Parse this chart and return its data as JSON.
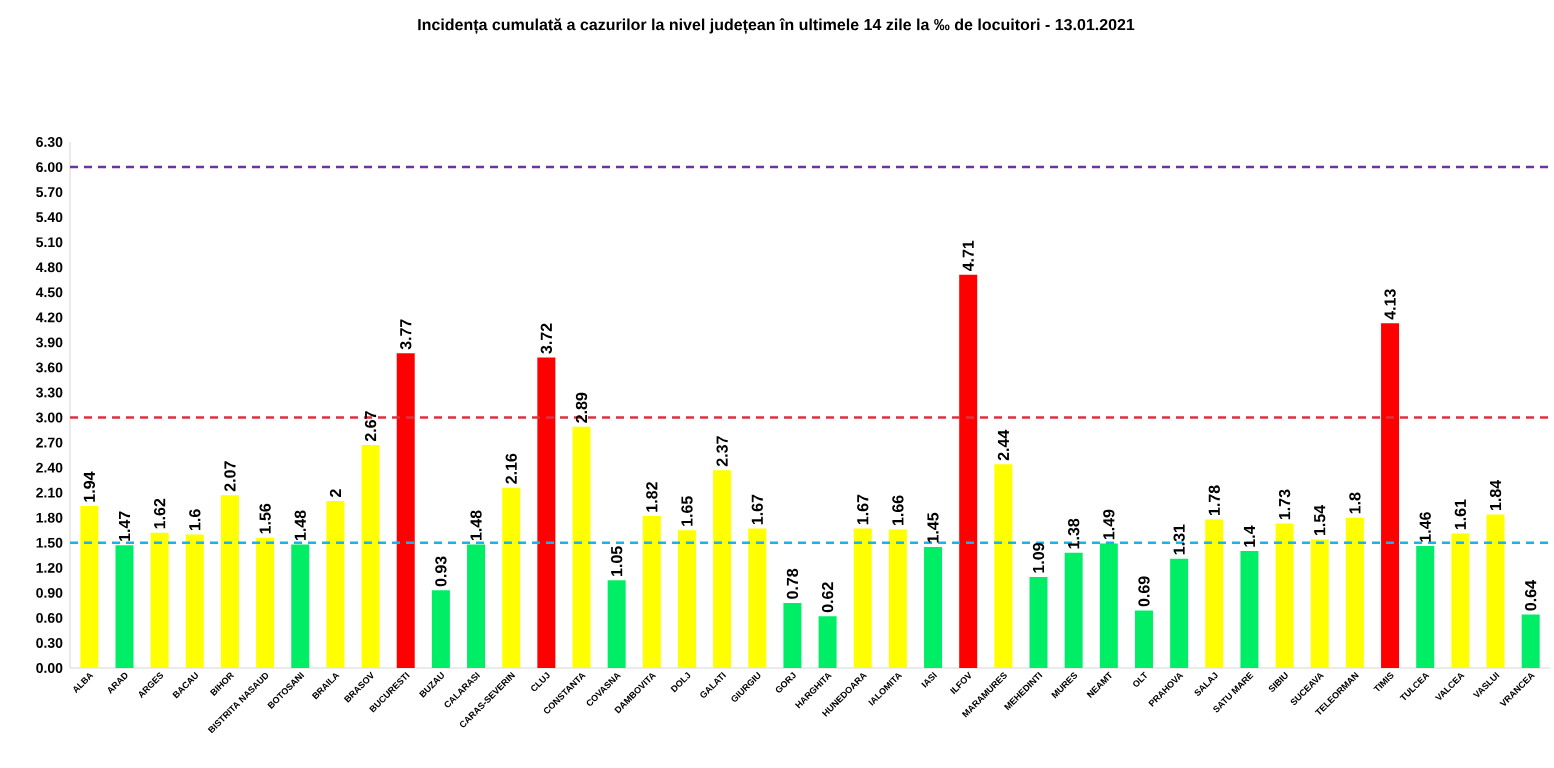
{
  "chart_data": {
    "type": "bar",
    "title": "Incidența cumulată a cazurilor la nivel județean în ultimele 14 zile la ‰ de locuitori - 13.01.2021",
    "categories": [
      "ALBA",
      "ARAD",
      "ARGES",
      "BACAU",
      "BIHOR",
      "BISTRITA NASAUD",
      "BOTOSANI",
      "BRAILA",
      "BRASOV",
      "BUCURESTI",
      "BUZAU",
      "CALARASI",
      "CARAS-SEVERIN",
      "CLUJ",
      "CONSTANTA",
      "COVASNA",
      "DAMBOVITA",
      "DOLJ",
      "GALATI",
      "GIURGIU",
      "GORJ",
      "HARGHITA",
      "HUNEDOARA",
      "IALOMITA",
      "IASI",
      "ILFOV",
      "MARAMURES",
      "MEHEDINTI",
      "MURES",
      "NEAMT",
      "OLT",
      "PRAHOVA",
      "SALAJ",
      "SATU MARE",
      "SIBIU",
      "SUCEAVA",
      "TELEORMAN",
      "TIMIS",
      "TULCEA",
      "VALCEA",
      "VASLUI",
      "VRANCEA"
    ],
    "values": [
      1.94,
      1.47,
      1.62,
      1.6,
      2.07,
      1.56,
      1.48,
      2,
      2.67,
      3.77,
      0.93,
      1.48,
      2.16,
      3.72,
      2.89,
      1.05,
      1.82,
      1.65,
      2.37,
      1.67,
      0.78,
      0.62,
      1.67,
      1.66,
      1.45,
      4.71,
      2.44,
      1.09,
      1.38,
      1.49,
      0.69,
      1.31,
      1.78,
      1.4,
      1.73,
      1.54,
      1.8,
      4.13,
      1.46,
      1.61,
      1.84,
      0.64
    ],
    "colors": [
      "#ffff00",
      "#00ee66",
      "#ffff00",
      "#ffff00",
      "#ffff00",
      "#ffff00",
      "#00ee66",
      "#ffff00",
      "#ffff00",
      "#ff0000",
      "#00ee66",
      "#00ee66",
      "#ffff00",
      "#ff0000",
      "#ffff00",
      "#00ee66",
      "#ffff00",
      "#ffff00",
      "#ffff00",
      "#ffff00",
      "#00ee66",
      "#00ee66",
      "#ffff00",
      "#ffff00",
      "#00ee66",
      "#ff0000",
      "#ffff00",
      "#00ee66",
      "#00ee66",
      "#00ee66",
      "#00ee66",
      "#00ee66",
      "#ffff00",
      "#00ee66",
      "#ffff00",
      "#ffff00",
      "#ffff00",
      "#ff0000",
      "#00ee66",
      "#ffff00",
      "#ffff00",
      "#00ee66"
    ],
    "ylim": [
      0,
      6.3
    ],
    "yticks": [
      {
        "value": 0,
        "label": "0.00"
      },
      {
        "value": 0.3,
        "label": "0.30"
      },
      {
        "value": 0.6,
        "label": "0.60"
      },
      {
        "value": 0.9,
        "label": "0.90"
      },
      {
        "value": 1.2,
        "label": "1.20"
      },
      {
        "value": 1.5,
        "label": "1.50"
      },
      {
        "value": 1.8,
        "label": "1.80"
      },
      {
        "value": 2.1,
        "label": "2.10"
      },
      {
        "value": 2.4,
        "label": "2.40"
      },
      {
        "value": 2.7,
        "label": "2.70"
      },
      {
        "value": 3,
        "label": "3.00"
      },
      {
        "value": 3.3,
        "label": "3.30"
      },
      {
        "value": 3.6,
        "label": "3.60"
      },
      {
        "value": 3.9,
        "label": "3.90"
      },
      {
        "value": 4.2,
        "label": "4.20"
      },
      {
        "value": 4.5,
        "label": "4.50"
      },
      {
        "value": 4.8,
        "label": "4.80"
      },
      {
        "value": 5.1,
        "label": "5.10"
      },
      {
        "value": 5.4,
        "label": "5.40"
      },
      {
        "value": 5.7,
        "label": "5.70"
      },
      {
        "value": 6,
        "label": "6.00"
      },
      {
        "value": 6.3,
        "label": "6.30"
      }
    ],
    "ref_lines": [
      {
        "axis": "y",
        "value": 6,
        "color": "#7030a0",
        "line_style": "dashed"
      },
      {
        "axis": "y",
        "value": 3,
        "color": "#e03040",
        "line_style": "dashed"
      },
      {
        "axis": "y",
        "value": 1.5,
        "color": "#20b0e8",
        "line_style": "dashed"
      }
    ],
    "data_labels": true,
    "grid": false
  }
}
